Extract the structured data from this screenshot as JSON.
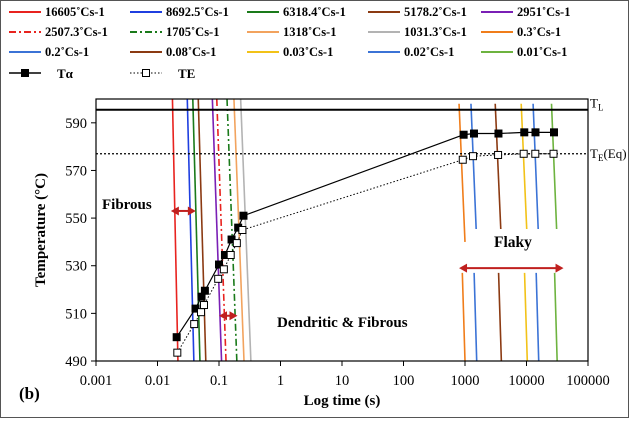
{
  "chart_data": {
    "type": "line",
    "panel_label": "(b)",
    "xlabel": "Log time (s)",
    "ylabel": "Temperature (°C)",
    "xscale": "log",
    "xlim": [
      0.001,
      100000
    ],
    "ylim": [
      490,
      600
    ],
    "x_tick_labels": [
      "0.001",
      "0.01",
      "0.1",
      "1",
      "10",
      "100",
      "1000",
      "10000",
      "100000"
    ],
    "y_tick_labels": [
      "490",
      "510",
      "530",
      "550",
      "570",
      "590"
    ],
    "y_ticks": [
      490,
      510,
      530,
      550,
      570,
      590
    ],
    "legend_position": "top",
    "reference_lines": [
      {
        "label_main": "T",
        "label_sub": "L",
        "y": 595.5,
        "style": "solid"
      },
      {
        "label_main": "T",
        "label_sub": "E",
        "label_suffix": "(Eq)",
        "y": 577,
        "style": "dotted"
      }
    ],
    "annotations": [
      {
        "text": "Fibrous"
      },
      {
        "text": "Dendritic  & Fibrous"
      },
      {
        "text": "Flaky"
      }
    ],
    "cooling_curves": [
      {
        "name": "16605˚Cs-1",
        "color": "#e8231f",
        "dash": "solid",
        "x_top": 0.0175,
        "x_bottom": 0.0215
      },
      {
        "name": "8692.5˚Cs-1",
        "color": "#1f3fe0",
        "dash": "solid",
        "x_top": 0.0305,
        "x_bottom": 0.039
      },
      {
        "name": "6318.4˚Cs-1",
        "color": "#1a7a1a",
        "dash": "solid",
        "x_top": 0.0375,
        "x_bottom": 0.049
      },
      {
        "name": "5178.2˚Cs-1",
        "color": "#8b3a12",
        "dash": "solid",
        "x_top": 0.046,
        "x_bottom": 0.061
      },
      {
        "name": "2951˚Cs-1",
        "color": "#7a1fb5",
        "dash": "solid",
        "x_top": 0.078,
        "x_bottom": 0.11
      },
      {
        "name": "2507.3˚Cs-1",
        "color": "#e8231f",
        "dash": "dashdot",
        "x_top": 0.092,
        "x_bottom": 0.13
      },
      {
        "name": "1705˚Cs-1",
        "color": "#1a7a1a",
        "dash": "dashdot",
        "x_top": 0.135,
        "x_bottom": 0.195
      },
      {
        "name": "1318˚Cs-1",
        "color": "#f2a35e",
        "dash": "solid",
        "x_top": 0.175,
        "x_bottom": 0.255
      },
      {
        "name": "1031.3˚Cs-1",
        "color": "#b3b3b3",
        "dash": "solid",
        "x_top": 0.225,
        "x_bottom": 0.33
      },
      {
        "name": "0.3˚Cs-1",
        "color": "#f07d1a",
        "dash": "solid",
        "x_top": 800,
        "x_bottom": 1000
      },
      {
        "name": "0.2˚Cs-1",
        "color": "#3b73d6",
        "dash": "solid",
        "x_top": 1250,
        "x_bottom": 1550
      },
      {
        "name": "0.08˚Cs-1",
        "color": "#8b3a12",
        "dash": "solid",
        "x_top": 3100,
        "x_bottom": 3900
      },
      {
        "name": "0.03˚Cs-1",
        "color": "#f2c218",
        "dash": "solid",
        "x_top": 8200,
        "x_bottom": 10300
      },
      {
        "name": "0.02˚Cs-1",
        "color": "#3b73d6",
        "dash": "solid",
        "x_top": 12800,
        "x_bottom": 15800
      },
      {
        "name": "0.01˚Cs-1",
        "color": "#6db33f",
        "dash": "solid",
        "x_top": 25500,
        "x_bottom": 31500
      }
    ],
    "series": [
      {
        "name": "Tα",
        "marker": "filled-square",
        "line": "solid",
        "x": [
          0.0205,
          0.0415,
          0.052,
          0.059,
          0.1,
          0.125,
          0.16,
          0.205,
          0.25,
          950,
          1400,
          3500,
          9200,
          14000,
          28000
        ],
        "y": [
          500,
          512,
          517,
          519.5,
          530.5,
          534.5,
          541,
          546,
          551,
          585,
          585.5,
          585.5,
          586,
          586,
          586
        ]
      },
      {
        "name": "TE",
        "marker": "open-square",
        "line": "dotted",
        "x": [
          0.021,
          0.0395,
          0.051,
          0.057,
          0.097,
          0.12,
          0.155,
          0.195,
          0.24,
          920,
          1350,
          3450,
          9000,
          13900,
          27500
        ],
        "y": [
          493.5,
          505.5,
          510.5,
          513.5,
          524.5,
          528.5,
          534.5,
          539.5,
          545,
          574.5,
          576,
          576.5,
          577,
          577,
          577
        ]
      }
    ]
  }
}
